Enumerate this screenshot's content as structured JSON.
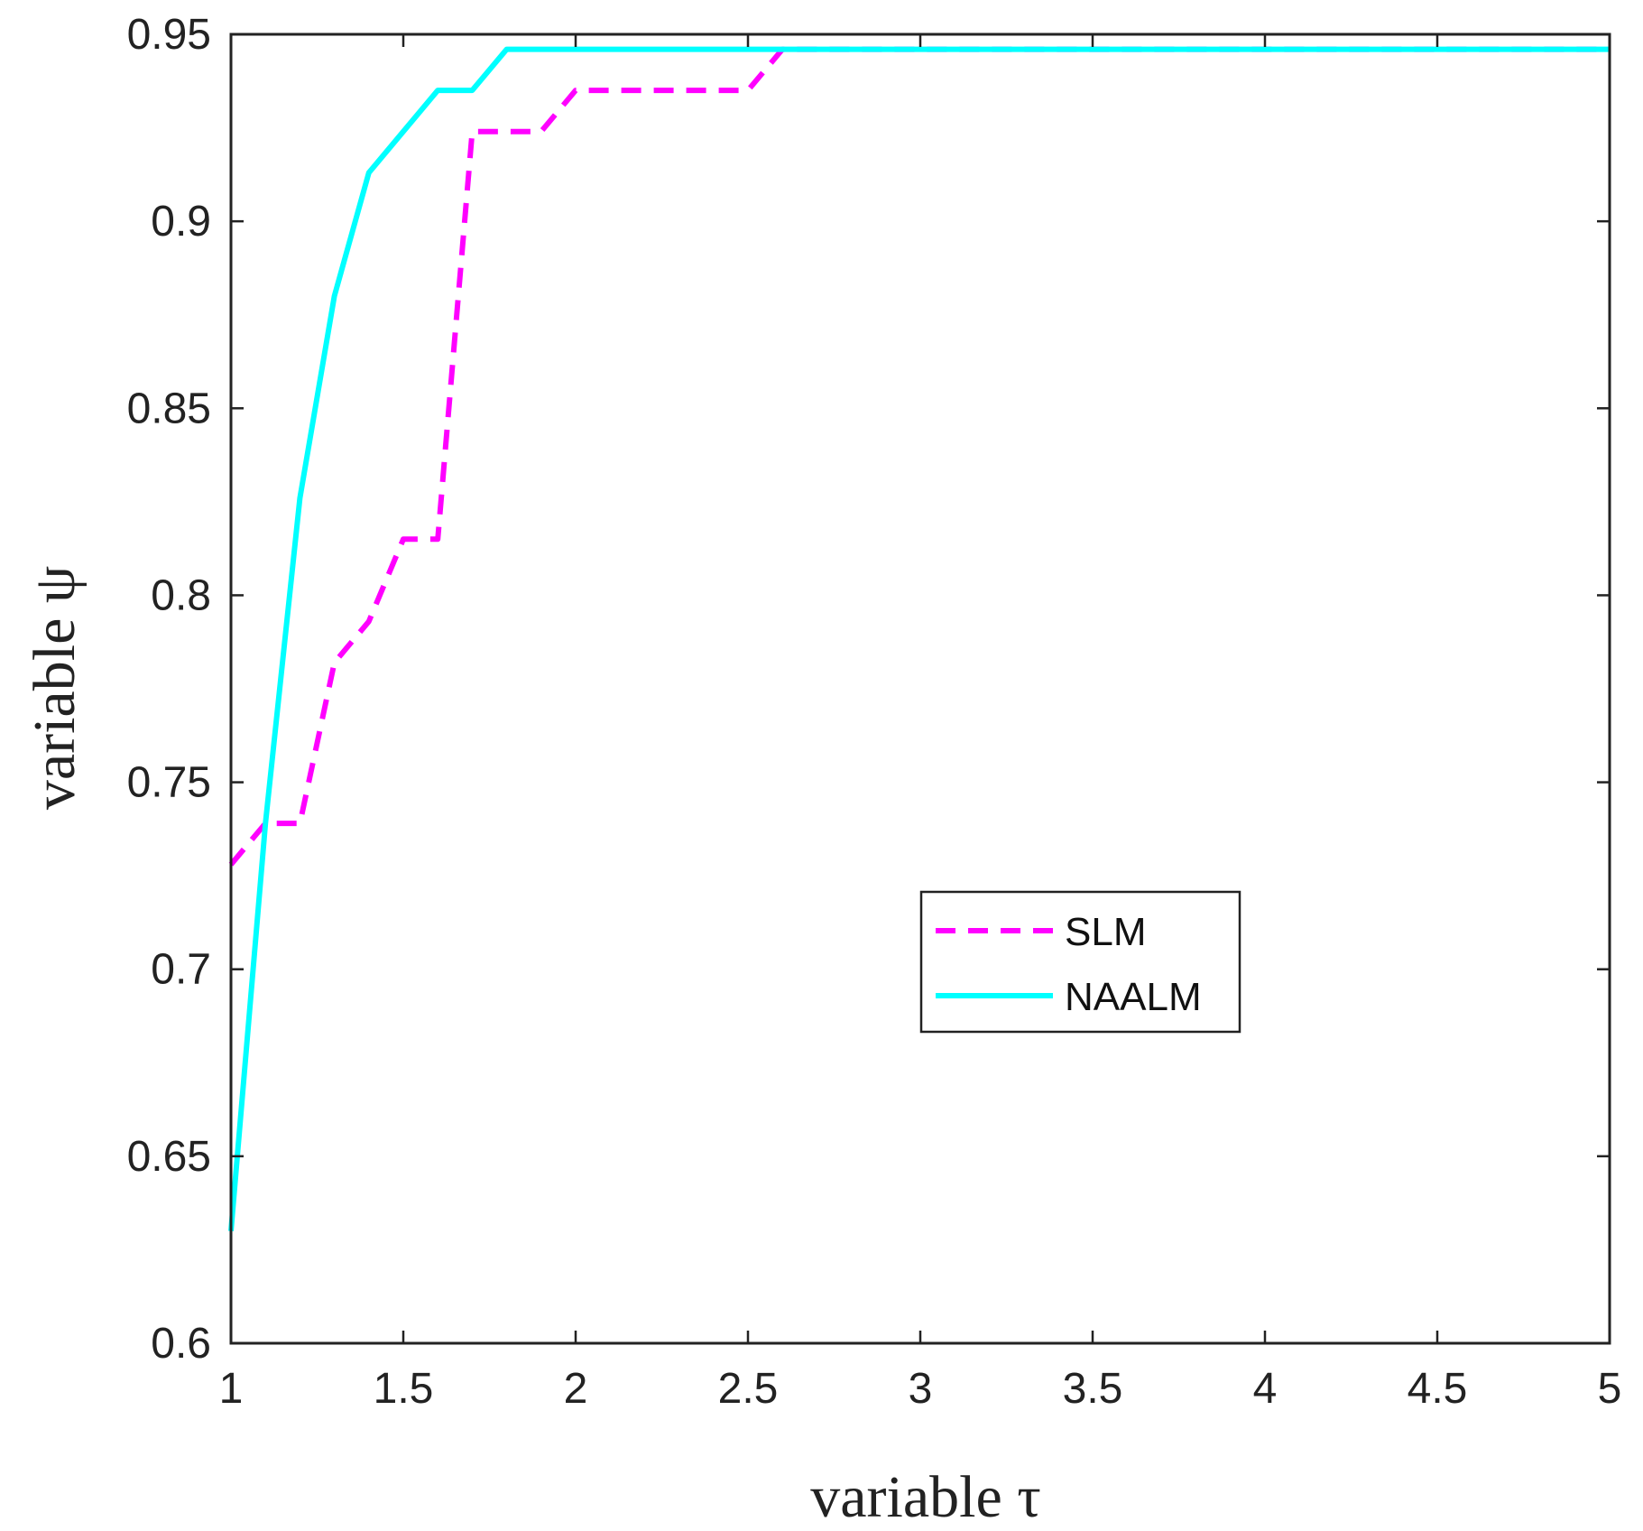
{
  "chart_data": {
    "type": "line",
    "title": "",
    "xlabel": "variable τ",
    "ylabel": "variable ψ",
    "xlim": [
      1,
      5
    ],
    "ylim": [
      0.6,
      0.95
    ],
    "xticks": [
      1,
      1.5,
      2,
      2.5,
      3,
      3.5,
      4,
      4.5,
      5
    ],
    "xtick_labels": [
      "1",
      "1.5",
      "2",
      "2.5",
      "3",
      "3.5",
      "4",
      "4.5",
      "5"
    ],
    "yticks": [
      0.6,
      0.65,
      0.7,
      0.75,
      0.8,
      0.85,
      0.9,
      0.95
    ],
    "ytick_labels": [
      "0.6",
      "0.65",
      "0.7",
      "0.75",
      "0.8",
      "0.85",
      "0.9",
      "0.95"
    ],
    "grid": false,
    "legend_position": "center-right",
    "series": [
      {
        "name": "SLM",
        "color": "#ff00ff",
        "style": "dashed",
        "x": [
          1.0,
          1.1,
          1.2,
          1.3,
          1.4,
          1.5,
          1.6,
          1.7,
          1.8,
          1.9,
          2.0,
          2.1,
          2.2,
          2.3,
          2.4,
          2.5,
          2.6,
          2.7,
          3.0,
          3.5,
          4.0,
          4.5,
          5.0
        ],
        "y": [
          0.728,
          0.739,
          0.739,
          0.782,
          0.793,
          0.815,
          0.815,
          0.924,
          0.924,
          0.924,
          0.935,
          0.935,
          0.935,
          0.935,
          0.935,
          0.935,
          0.946,
          0.946,
          0.946,
          0.946,
          0.946,
          0.946,
          0.946
        ]
      },
      {
        "name": "NAALM",
        "color": "#00ffff",
        "style": "solid",
        "x": [
          1.0,
          1.1,
          1.2,
          1.3,
          1.4,
          1.5,
          1.6,
          1.7,
          1.8,
          1.9,
          2.0,
          2.5,
          3.0,
          3.5,
          4.0,
          4.5,
          5.0
        ],
        "y": [
          0.63,
          0.739,
          0.826,
          0.88,
          0.913,
          0.924,
          0.935,
          0.935,
          0.946,
          0.946,
          0.946,
          0.946,
          0.946,
          0.946,
          0.946,
          0.946,
          0.946
        ]
      }
    ]
  }
}
